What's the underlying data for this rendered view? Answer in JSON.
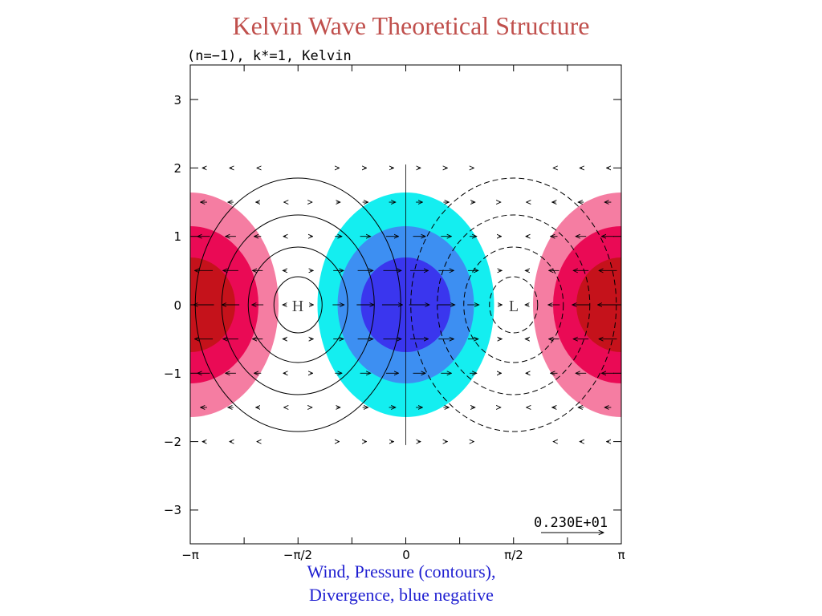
{
  "slide": {
    "title": "Kelvin Wave Theoretical Structure",
    "caption_line1": "Wind, Pressure (contours),",
    "caption_line2": "Divergence, blue negative"
  },
  "plot": {
    "header": "(n=−1), k*=1, Kelvin",
    "high_label": "H",
    "low_label": "L",
    "reference_vector_label": "0.230E+01",
    "x_ticks": [
      "−π",
      "−π/2",
      "0",
      "π/2",
      "π"
    ],
    "y_ticks": [
      "3",
      "2",
      "1",
      "0",
      "−1",
      "−2",
      "−3"
    ]
  },
  "colors": {
    "title": "#c0504d",
    "caption": "#1f1fd1",
    "div_positive_outer": "#f57da2",
    "div_positive_mid": "#ea0a55",
    "div_positive_inner": "#c5121b",
    "div_negative_outer": "#14eef0",
    "div_negative_mid": "#3d8ff2",
    "div_negative_inner": "#3a36ee"
  }
}
